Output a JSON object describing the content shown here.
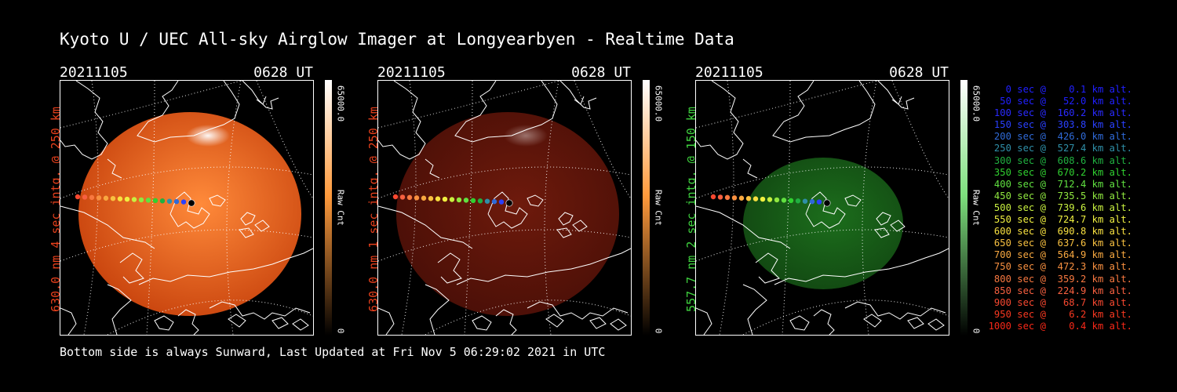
{
  "title": "Kyoto U / UEC All-sky Airglow Imager at Longyearbyen - Realtime Data",
  "footer": "Bottom side is always Sunward, Last Updated at Fri Nov  5 06:29:02 2021 in UTC",
  "panels": [
    {
      "date": "20211105",
      "time": "0628 UT",
      "label": "630.0 nm 4 sec intg. @ 250 km",
      "cbar_max": "65000.0",
      "cbar_unit": "Raw Cnt",
      "cbar_min": "0",
      "label_color": "#e8401c",
      "bar_color": "#ff9a3c",
      "disk_bright": "#ff8a3a",
      "disk_dark": "#c8430d",
      "disk_opacity": 1
    },
    {
      "date": "20211105",
      "time": "0628 UT",
      "label": "630.0 nm 1 sec intg. @ 250 km",
      "cbar_max": "65000.0",
      "cbar_unit": "Raw Cnt",
      "cbar_min": "0",
      "label_color": "#e8401c",
      "bar_color": "#ff9a3c",
      "disk_bright": "#6e1a0c",
      "disk_dark": "#4a0f07",
      "disk_opacity": 1
    },
    {
      "date": "20211105",
      "time": "0628 UT",
      "label": "557.7 nm 2 sec intg. @ 150 km",
      "cbar_max": "65000.0",
      "cbar_unit": "Raw Cnt",
      "cbar_min": "0",
      "label_color": "#3fd43f",
      "bar_color": "#7de07d",
      "disk_bright": "#1c6e1c",
      "disk_dark": "#124812",
      "disk_opacity": 1
    }
  ],
  "legend": [
    {
      "text": "0 sec @    0.1 km alt.",
      "color": "#2020ff"
    },
    {
      "text": "50 sec @   52.0 km alt.",
      "color": "#2020ff"
    },
    {
      "text": "100 sec @  160.2 km alt.",
      "color": "#2a2aff"
    },
    {
      "text": "150 sec @  303.8 km alt.",
      "color": "#2a40ff"
    },
    {
      "text": "200 sec @  426.0 km alt.",
      "color": "#2f6ad8"
    },
    {
      "text": "250 sec @  527.4 km alt.",
      "color": "#2f8fa8"
    },
    {
      "text": "300 sec @  608.6 km alt.",
      "color": "#20b040"
    },
    {
      "text": "350 sec @  670.2 km alt.",
      "color": "#30d030"
    },
    {
      "text": "400 sec @  712.4 km alt.",
      "color": "#60e040"
    },
    {
      "text": "450 sec @  735.5 km alt.",
      "color": "#90e840"
    },
    {
      "text": "500 sec @  739.6 km alt.",
      "color": "#c8f040"
    },
    {
      "text": "550 sec @  724.7 km alt.",
      "color": "#f0f040"
    },
    {
      "text": "600 sec @  690.8 km alt.",
      "color": "#f8e040"
    },
    {
      "text": "650 sec @  637.6 km alt.",
      "color": "#f8c040"
    },
    {
      "text": "700 sec @  564.9 km alt.",
      "color": "#f8a840"
    },
    {
      "text": "750 sec @  472.3 km alt.",
      "color": "#f89040"
    },
    {
      "text": "800 sec @  359.2 km alt.",
      "color": "#f87840"
    },
    {
      "text": "850 sec @  224.9 km alt.",
      "color": "#f86040"
    },
    {
      "text": "900 sec @   68.7 km alt.",
      "color": "#f84830"
    },
    {
      "text": "950 sec @    6.2 km alt.",
      "color": "#f83820"
    },
    {
      "text": "1000 sec @    0.4 km alt.",
      "color": "#f82818"
    }
  ]
}
